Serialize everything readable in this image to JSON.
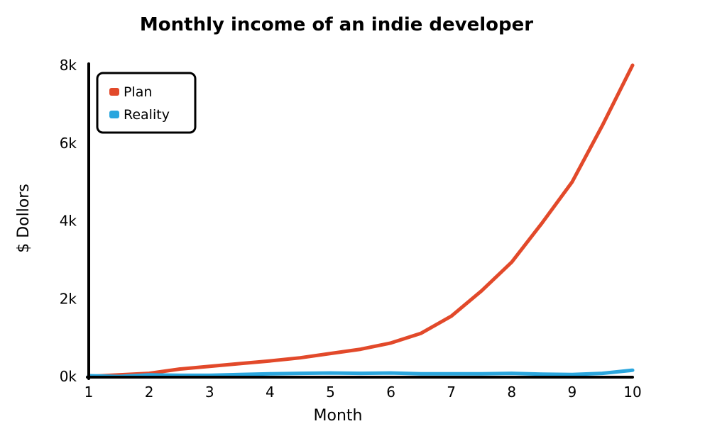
{
  "chart_data": {
    "type": "line",
    "title": "Monthly income of an indie developer",
    "xlabel": "Month",
    "ylabel": "$ Dollors",
    "xlim": [
      1,
      10
    ],
    "ylim": [
      0,
      8000
    ],
    "x_ticks": [
      "1",
      "2",
      "3",
      "4",
      "5",
      "6",
      "7",
      "8",
      "9",
      "10"
    ],
    "y_ticks": [
      {
        "value": 0,
        "label": "0k"
      },
      {
        "value": 2000,
        "label": "2k"
      },
      {
        "value": 4000,
        "label": "4k"
      },
      {
        "value": 6000,
        "label": "6k"
      },
      {
        "value": 8000,
        "label": "8k"
      }
    ],
    "legend_position": "top-left",
    "series": [
      {
        "name": "Plan",
        "color": "#e2492a",
        "x": [
          1,
          1.5,
          2,
          2.5,
          3,
          3.5,
          4,
          4.5,
          5,
          5.5,
          6,
          6.5,
          7,
          7.5,
          8,
          8.5,
          9,
          9.5,
          10
        ],
        "y": [
          0,
          40,
          80,
          190,
          260,
          330,
          400,
          480,
          590,
          700,
          860,
          1110,
          1550,
          2200,
          2940,
          3940,
          5000,
          6450,
          8000
        ]
      },
      {
        "name": "Reality",
        "color": "#2aa6de",
        "x": [
          1,
          1.5,
          2,
          2.5,
          3,
          3.5,
          4,
          4.5,
          5,
          5.5,
          6,
          6.5,
          7,
          7.5,
          8,
          8.5,
          9,
          9.5,
          10
        ],
        "y": [
          20,
          0,
          40,
          30,
          30,
          50,
          70,
          80,
          90,
          80,
          90,
          70,
          70,
          70,
          80,
          60,
          50,
          80,
          160
        ]
      }
    ]
  }
}
